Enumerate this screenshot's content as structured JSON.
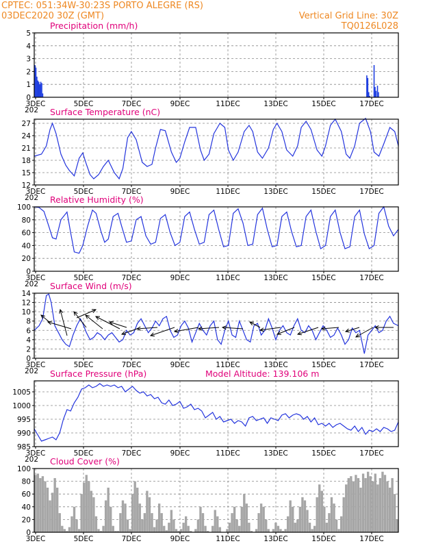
{
  "header": {
    "station": "CPTEC:   051:34W-30:23S   PORTO ALEGRE (RS)",
    "date": "03DEC2020 30Z (GMT)",
    "grid_line": "Vertical Grid Line: 30Z",
    "code": "TQ0126L028"
  },
  "colors": {
    "header": "#ee8822",
    "title": "#e0007a",
    "line": "#2233dd",
    "bar": "#1f3fe0",
    "cloud": "#a6a6a6"
  },
  "x_labels": [
    "3DEC",
    "5DEC",
    "7DEC",
    "9DEC",
    "11DEC",
    "13DEC",
    "15DEC",
    "17DEC"
  ],
  "x_under_label": "202",
  "chart_data": [
    {
      "id": "precip",
      "type": "bar",
      "title": "Precipitation (mm/h)",
      "ylim": [
        0,
        5
      ],
      "yticks": [
        0,
        1,
        2,
        3,
        4,
        5
      ],
      "xlim": [
        0,
        15
      ],
      "x": [
        0.03,
        0.07,
        0.11,
        0.15,
        0.19,
        0.23,
        0.27,
        0.31,
        0.35,
        13.7,
        13.74,
        13.78,
        13.82,
        14.0,
        14.04,
        14.08,
        14.14,
        14.18
      ],
      "values": [
        2.5,
        2.3,
        1.6,
        1.3,
        1.2,
        1.0,
        1.2,
        1.1,
        0.3,
        1.7,
        1.5,
        0.4,
        0.1,
        2.5,
        0.8,
        0.5,
        0.9,
        0.4
      ]
    },
    {
      "id": "temp",
      "type": "line",
      "title": "Surface Temperature (nC)",
      "ylim": [
        12,
        28
      ],
      "yticks": [
        12,
        15,
        18,
        21,
        24,
        27
      ],
      "xlim": [
        0,
        15
      ],
      "x": [
        0,
        0.3,
        0.5,
        0.65,
        0.75,
        0.9,
        1.1,
        1.3,
        1.45,
        1.65,
        1.85,
        2.0,
        2.15,
        2.3,
        2.45,
        2.65,
        2.85,
        3.05,
        3.3,
        3.5,
        3.65,
        3.85,
        4.0,
        4.2,
        4.45,
        4.65,
        4.85,
        5.0,
        5.2,
        5.4,
        5.65,
        5.85,
        6.0,
        6.2,
        6.4,
        6.65,
        6.85,
        7.0,
        7.2,
        7.4,
        7.65,
        7.85,
        8.0,
        8.2,
        8.4,
        8.65,
        8.85,
        9.0,
        9.2,
        9.4,
        9.65,
        9.85,
        10.0,
        10.2,
        10.4,
        10.65,
        10.85,
        11.0,
        11.2,
        11.4,
        11.65,
        11.85,
        12.0,
        12.2,
        12.4,
        12.65,
        12.85,
        13.0,
        13.2,
        13.4,
        13.65,
        13.85,
        14.0,
        14.2,
        14.4,
        14.65,
        14.85,
        15.0
      ],
      "values": [
        19.0,
        19.5,
        21.5,
        25.5,
        27.0,
        24.5,
        19.5,
        16.8,
        15.5,
        14.2,
        18.5,
        19.8,
        17.0,
        14.5,
        13.5,
        14.5,
        16.5,
        18.0,
        15.0,
        13.5,
        16.0,
        23.5,
        25.0,
        23.0,
        17.5,
        16.5,
        17.0,
        21.0,
        25.5,
        25.2,
        20.0,
        17.5,
        18.5,
        22.5,
        26.0,
        26.0,
        20.5,
        18.0,
        19.5,
        24.5,
        27.0,
        26.0,
        20.5,
        18.0,
        20.0,
        25.0,
        26.5,
        25.0,
        20.0,
        18.5,
        21.0,
        25.5,
        27.0,
        25.0,
        20.5,
        19.0,
        21.5,
        26.0,
        27.5,
        25.5,
        20.5,
        19.0,
        21.5,
        26.5,
        28.0,
        25.0,
        19.5,
        18.5,
        21.5,
        27.0,
        28.2,
        25.0,
        20.0,
        19.0,
        22.0,
        26.0,
        25.0,
        21.5
      ]
    },
    {
      "id": "rh",
      "type": "line",
      "title": "Relative Humidity (%)",
      "ylim": [
        0,
        100
      ],
      "yticks": [
        0,
        20,
        40,
        60,
        80,
        100
      ],
      "xlim": [
        0,
        15
      ],
      "x": [
        0,
        0.2,
        0.4,
        0.6,
        0.75,
        0.9,
        1.1,
        1.35,
        1.5,
        1.65,
        1.85,
        2.0,
        2.2,
        2.4,
        2.55,
        2.75,
        2.9,
        3.05,
        3.25,
        3.45,
        3.6,
        3.8,
        4.0,
        4.2,
        4.4,
        4.6,
        4.8,
        5.0,
        5.2,
        5.4,
        5.6,
        5.8,
        6.0,
        6.2,
        6.4,
        6.6,
        6.8,
        7.0,
        7.2,
        7.4,
        7.6,
        7.8,
        8.0,
        8.2,
        8.4,
        8.6,
        8.8,
        9.0,
        9.2,
        9.4,
        9.6,
        9.8,
        10.0,
        10.2,
        10.4,
        10.6,
        10.8,
        11.0,
        11.2,
        11.4,
        11.6,
        11.8,
        12.0,
        12.2,
        12.4,
        12.6,
        12.8,
        13.0,
        13.2,
        13.4,
        13.6,
        13.8,
        14.0,
        14.2,
        14.4,
        14.6,
        14.8,
        15.0
      ],
      "values": [
        100,
        99,
        93,
        70,
        52,
        50,
        80,
        92,
        60,
        30,
        28,
        40,
        70,
        95,
        90,
        62,
        45,
        50,
        85,
        90,
        70,
        45,
        47,
        80,
        85,
        55,
        42,
        45,
        82,
        88,
        60,
        40,
        45,
        85,
        92,
        65,
        42,
        45,
        88,
        95,
        65,
        38,
        40,
        90,
        97,
        75,
        40,
        42,
        88,
        98,
        65,
        38,
        40,
        85,
        92,
        62,
        38,
        40,
        85,
        95,
        62,
        35,
        40,
        85,
        95,
        60,
        35,
        38,
        85,
        95,
        58,
        35,
        40,
        90,
        100,
        70,
        55,
        65
      ]
    },
    {
      "id": "wind",
      "type": "line",
      "title": "Surface Wind (m/s)",
      "ylim": [
        0,
        14
      ],
      "yticks": [
        0,
        2,
        4,
        6,
        8,
        10,
        12,
        14
      ],
      "xlim": [
        0,
        15
      ],
      "x": [
        0,
        0.2,
        0.35,
        0.5,
        0.6,
        0.7,
        0.85,
        1.0,
        1.15,
        1.3,
        1.45,
        1.6,
        1.75,
        1.9,
        2.0,
        2.15,
        2.3,
        2.45,
        2.6,
        2.75,
        2.9,
        3.05,
        3.2,
        3.35,
        3.5,
        3.65,
        3.8,
        3.95,
        4.1,
        4.25,
        4.4,
        4.55,
        4.7,
        4.85,
        5.0,
        5.15,
        5.3,
        5.45,
        5.6,
        5.75,
        5.9,
        6.05,
        6.2,
        6.35,
        6.5,
        6.65,
        6.8,
        6.95,
        7.1,
        7.25,
        7.4,
        7.55,
        7.7,
        7.85,
        8.0,
        8.15,
        8.3,
        8.45,
        8.6,
        8.75,
        8.9,
        9.05,
        9.2,
        9.35,
        9.5,
        9.65,
        9.8,
        9.95,
        10.1,
        10.25,
        10.4,
        10.55,
        10.7,
        10.85,
        11.0,
        11.15,
        11.3,
        11.45,
        11.6,
        11.75,
        11.9,
        12.05,
        12.2,
        12.35,
        12.5,
        12.65,
        12.8,
        12.95,
        13.1,
        13.25,
        13.4,
        13.5,
        13.6,
        13.75,
        13.9,
        14.05,
        14.2,
        14.35,
        14.5,
        14.65,
        14.8,
        15.0
      ],
      "values": [
        6.0,
        7.0,
        8.5,
        13.5,
        13.8,
        12.0,
        7.0,
        5.5,
        4.0,
        3.0,
        2.5,
        5.0,
        7.0,
        8.5,
        7.5,
        5.5,
        4.0,
        4.5,
        5.5,
        5.0,
        4.0,
        5.0,
        5.5,
        4.5,
        3.5,
        4.0,
        6.0,
        5.0,
        5.5,
        7.5,
        8.5,
        7.0,
        5.5,
        6.5,
        8.0,
        7.0,
        8.5,
        9.0,
        6.0,
        4.5,
        5.0,
        7.0,
        8.0,
        6.5,
        3.5,
        5.5,
        7.5,
        6.0,
        5.0,
        7.0,
        8.0,
        4.0,
        3.0,
        6.0,
        8.0,
        5.0,
        4.5,
        8.0,
        6.0,
        4.0,
        3.5,
        7.0,
        7.5,
        5.0,
        6.0,
        8.5,
        6.5,
        4.0,
        6.0,
        7.0,
        5.5,
        5.0,
        7.0,
        8.5,
        6.0,
        5.5,
        7.0,
        6.0,
        4.0,
        5.5,
        7.0,
        6.0,
        4.5,
        5.0,
        6.5,
        5.0,
        3.0,
        4.0,
        6.5,
        5.5,
        6.0,
        3.5,
        1.0,
        5.0,
        6.0,
        7.0,
        5.5,
        6.0,
        8.0,
        9.0,
        7.5,
        7.0
      ]
    },
    {
      "id": "pressure",
      "type": "line",
      "title": "Surface Pressure (hPa)",
      "annotation": "Model Altitude: 139.106  m",
      "ylim": [
        985,
        1009
      ],
      "yticks": [
        985,
        990,
        995,
        1000,
        1005
      ],
      "xlim": [
        0,
        15
      ],
      "x": [
        0,
        0.1,
        0.3,
        0.45,
        0.6,
        0.75,
        0.9,
        1.05,
        1.2,
        1.35,
        1.5,
        1.65,
        1.8,
        1.95,
        2.1,
        2.25,
        2.4,
        2.55,
        2.7,
        2.85,
        3.0,
        3.15,
        3.3,
        3.45,
        3.6,
        3.75,
        3.9,
        4.05,
        4.2,
        4.35,
        4.5,
        4.65,
        4.8,
        4.95,
        5.1,
        5.25,
        5.4,
        5.55,
        5.7,
        5.85,
        6.0,
        6.15,
        6.3,
        6.45,
        6.6,
        6.75,
        6.9,
        7.05,
        7.2,
        7.35,
        7.5,
        7.65,
        7.8,
        7.95,
        8.1,
        8.25,
        8.4,
        8.55,
        8.7,
        8.85,
        9.0,
        9.15,
        9.3,
        9.45,
        9.6,
        9.75,
        9.9,
        10.05,
        10.2,
        10.35,
        10.5,
        10.65,
        10.8,
        10.95,
        11.1,
        11.25,
        11.4,
        11.55,
        11.7,
        11.85,
        12.0,
        12.15,
        12.3,
        12.45,
        12.6,
        12.75,
        12.9,
        13.05,
        13.2,
        13.35,
        13.5,
        13.65,
        13.8,
        13.95,
        14.1,
        14.25,
        14.4,
        14.55,
        14.7,
        14.85,
        15.0
      ],
      "values": [
        991.5,
        990.0,
        987.0,
        987.5,
        988.0,
        988.5,
        987.5,
        990.0,
        995.0,
        998.5,
        998.0,
        1001.0,
        1003.0,
        1006.0,
        1006.5,
        1007.5,
        1006.5,
        1007.0,
        1008.0,
        1007.0,
        1007.5,
        1007.0,
        1007.5,
        1006.5,
        1007.0,
        1005.0,
        1006.0,
        1007.0,
        1005.5,
        1004.5,
        1005.0,
        1003.5,
        1004.0,
        1002.5,
        1003.0,
        1001.0,
        1000.5,
        1002.0,
        1000.0,
        1000.5,
        1001.5,
        999.0,
        999.5,
        1000.5,
        998.5,
        999.0,
        998.0,
        995.5,
        996.5,
        997.5,
        995.0,
        996.0,
        994.0,
        994.5,
        995.0,
        993.5,
        994.5,
        994.0,
        992.5,
        995.5,
        996.0,
        994.5,
        995.0,
        995.5,
        993.5,
        995.5,
        995.0,
        994.5,
        996.5,
        997.0,
        995.5,
        996.5,
        997.0,
        996.5,
        995.0,
        996.0,
        994.0,
        995.5,
        993.0,
        993.5,
        992.5,
        993.5,
        992.0,
        993.0,
        993.5,
        992.5,
        991.5,
        991.0,
        992.5,
        990.5,
        992.0,
        989.5,
        991.0,
        990.5,
        991.5,
        990.5,
        992.0,
        991.5,
        990.5,
        991.0,
        994.0
      ]
    },
    {
      "id": "cloud",
      "type": "bar",
      "title": "Cloud Cover (%)",
      "ylim": [
        0,
        100
      ],
      "yticks": [
        0,
        20,
        40,
        60,
        80,
        100
      ],
      "xlim": [
        0,
        15
      ],
      "x": [
        0.05,
        0.15,
        0.25,
        0.35,
        0.45,
        0.55,
        0.65,
        0.75,
        0.85,
        0.95,
        1.05,
        1.15,
        1.25,
        1.35,
        1.45,
        1.55,
        1.65,
        1.75,
        1.85,
        1.95,
        2.05,
        2.15,
        2.25,
        2.35,
        2.45,
        2.55,
        2.65,
        2.75,
        2.85,
        2.95,
        3.05,
        3.15,
        3.25,
        3.35,
        3.45,
        3.55,
        3.65,
        3.75,
        3.85,
        3.95,
        4.05,
        4.15,
        4.25,
        4.35,
        4.45,
        4.55,
        4.65,
        4.75,
        4.85,
        4.95,
        5.05,
        5.15,
        5.25,
        5.35,
        5.45,
        5.55,
        5.65,
        5.75,
        5.85,
        5.95,
        6.05,
        6.15,
        6.25,
        6.35,
        6.45,
        6.55,
        6.65,
        6.75,
        6.85,
        6.95,
        7.05,
        7.15,
        7.25,
        7.35,
        7.45,
        7.55,
        7.65,
        7.75,
        7.85,
        7.95,
        8.05,
        8.15,
        8.25,
        8.35,
        8.45,
        8.55,
        8.65,
        8.75,
        8.85,
        8.95,
        9.05,
        9.15,
        9.25,
        9.35,
        9.45,
        9.55,
        9.65,
        9.75,
        9.85,
        9.95,
        10.05,
        10.15,
        10.25,
        10.35,
        10.45,
        10.55,
        10.65,
        10.75,
        10.85,
        10.95,
        11.05,
        11.15,
        11.25,
        11.35,
        11.45,
        11.55,
        11.65,
        11.75,
        11.85,
        11.95,
        12.05,
        12.15,
        12.25,
        12.35,
        12.45,
        12.55,
        12.65,
        12.75,
        12.85,
        12.95,
        13.05,
        13.15,
        13.25,
        13.35,
        13.45,
        13.55,
        13.65,
        13.75,
        13.85,
        13.95,
        14.05,
        14.15,
        14.25,
        14.35,
        14.45,
        14.55,
        14.65,
        14.75,
        14.85,
        14.95
      ],
      "values": [
        90,
        92,
        85,
        88,
        80,
        70,
        50,
        62,
        85,
        70,
        30,
        10,
        5,
        2,
        8,
        25,
        40,
        20,
        5,
        60,
        78,
        90,
        80,
        65,
        55,
        25,
        5,
        2,
        10,
        50,
        70,
        40,
        10,
        2,
        2,
        30,
        50,
        45,
        20,
        5,
        60,
        80,
        70,
        45,
        20,
        30,
        65,
        55,
        30,
        8,
        20,
        45,
        30,
        10,
        3,
        15,
        35,
        20,
        5,
        2,
        5,
        15,
        25,
        10,
        2,
        0,
        5,
        20,
        40,
        30,
        10,
        2,
        0,
        10,
        35,
        25,
        8,
        0,
        0,
        5,
        15,
        30,
        40,
        20,
        10,
        40,
        60,
        45,
        15,
        2,
        0,
        5,
        30,
        45,
        40,
        20,
        5,
        0,
        5,
        15,
        10,
        5,
        2,
        5,
        25,
        50,
        40,
        15,
        20,
        40,
        55,
        50,
        35,
        15,
        5,
        10,
        55,
        75,
        65,
        40,
        15,
        30,
        55,
        45,
        20,
        5,
        25,
        55,
        75,
        85,
        88,
        80,
        90,
        85,
        70,
        92,
        85,
        95,
        88,
        80,
        92,
        75,
        85,
        95,
        90,
        80,
        70,
        85,
        60,
        20
      ]
    }
  ]
}
